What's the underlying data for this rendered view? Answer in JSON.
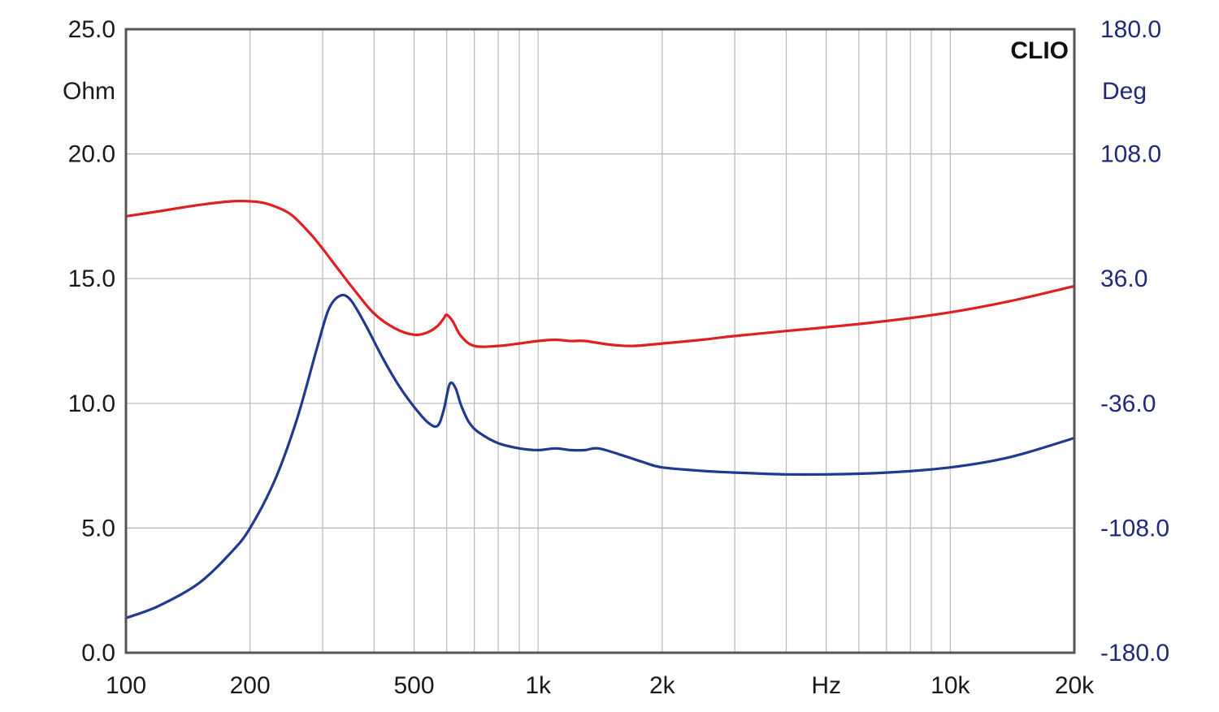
{
  "chart_data": {
    "type": "line",
    "brand": "CLIO",
    "x_scale": "log",
    "xlim": [
      100,
      20000
    ],
    "x_ticks": [
      {
        "value": 100,
        "label": "100"
      },
      {
        "value": 200,
        "label": "200"
      },
      {
        "value": 500,
        "label": "500"
      },
      {
        "value": 1000,
        "label": "1k"
      },
      {
        "value": 2000,
        "label": "2k"
      },
      {
        "value": 5000,
        "label": "Hz"
      },
      {
        "value": 10000,
        "label": "10k"
      },
      {
        "value": 20000,
        "label": "20k"
      }
    ],
    "y_left": {
      "unit_label": "Ohm",
      "range": [
        0,
        25
      ],
      "ticks": [
        "0.0",
        "5.0",
        "10.0",
        "15.0",
        "20.0",
        "25.0"
      ],
      "tick_values": [
        0,
        5,
        10,
        15,
        20,
        25
      ]
    },
    "y_right": {
      "unit_label": "Deg",
      "range": [
        -180,
        180
      ],
      "ticks": [
        "-180.0",
        "-108.0",
        "-36.0",
        "36.0",
        "108.0",
        "180.0"
      ],
      "tick_values": [
        -180,
        -108,
        -36,
        36,
        108,
        180
      ]
    },
    "grid": true,
    "series": [
      {
        "axis": "left",
        "color": "#e02020",
        "x": [
          100,
          120,
          150,
          180,
          200,
          220,
          250,
          280,
          300,
          330,
          360,
          400,
          450,
          500,
          540,
          570,
          590,
          600,
          620,
          650,
          700,
          800,
          900,
          1000,
          1100,
          1200,
          1300,
          1500,
          1700,
          2000,
          2500,
          3000,
          4000,
          5000,
          7000,
          10000,
          14000,
          20000
        ],
        "y": [
          17.5,
          17.7,
          17.95,
          18.1,
          18.1,
          18.0,
          17.6,
          16.8,
          16.2,
          15.3,
          14.5,
          13.6,
          13.0,
          12.75,
          12.85,
          13.1,
          13.4,
          13.55,
          13.3,
          12.7,
          12.3,
          12.3,
          12.4,
          12.5,
          12.55,
          12.5,
          12.5,
          12.35,
          12.3,
          12.4,
          12.55,
          12.7,
          12.9,
          13.05,
          13.3,
          13.65,
          14.1,
          14.7
        ]
      },
      {
        "axis": "right",
        "color": "#203a90",
        "x": [
          100,
          120,
          150,
          180,
          200,
          230,
          260,
          290,
          310,
          330,
          350,
          380,
          420,
          460,
          500,
          540,
          570,
          590,
          610,
          630,
          650,
          680,
          720,
          800,
          900,
          1000,
          1100,
          1200,
          1300,
          1400,
          1600,
          1800,
          2000,
          2500,
          3000,
          4000,
          5000,
          7000,
          10000,
          14000,
          20000
        ],
        "y": [
          -160,
          -153,
          -140,
          -122,
          -108,
          -80,
          -45,
          -5,
          18,
          26,
          24,
          10,
          -10,
          -26,
          -38,
          -47,
          -49,
          -40,
          -25,
          -27,
          -37,
          -47,
          -53,
          -59,
          -62,
          -63,
          -62,
          -63,
          -63,
          -62,
          -66,
          -70,
          -73,
          -75,
          -76,
          -77,
          -77,
          -76,
          -73,
          -67,
          -56
        ]
      }
    ]
  }
}
